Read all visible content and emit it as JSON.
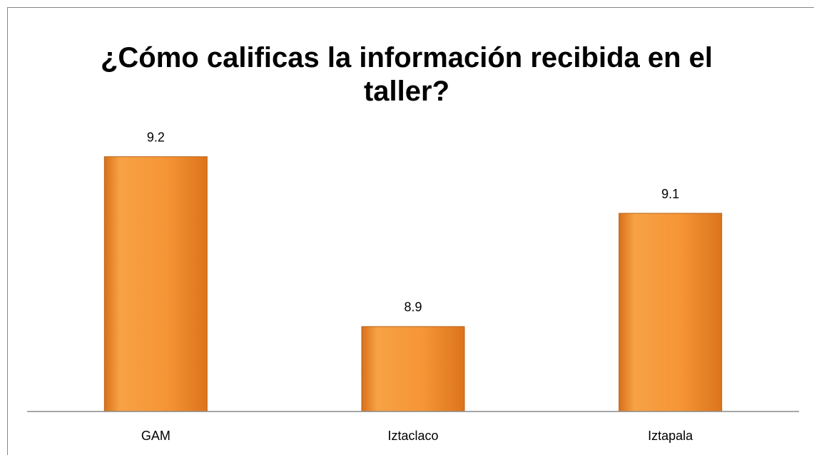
{
  "chart_data": {
    "type": "bar",
    "title": "¿Cómo calificas la información recibida en el taller?",
    "categories": [
      "GAM",
      "Iztaclaco",
      "Iztapala"
    ],
    "values": [
      9.2,
      8.9,
      9.1
    ],
    "color": "#f5922f",
    "ylim": [
      8.75,
      9.25
    ]
  }
}
